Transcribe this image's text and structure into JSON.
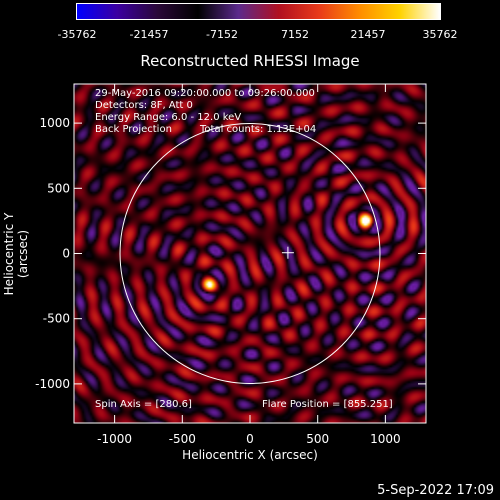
{
  "colorbar": {
    "ticks": [
      "-35762",
      "-21457",
      "-7152",
      "7152",
      "21457",
      "35762"
    ],
    "colors": [
      "#0000ff",
      "#3b00a0",
      "#2a0838",
      "#000000",
      "#5b2a8c",
      "#b01020",
      "#e83a1a",
      "#ff8c00",
      "#ffd200",
      "#ffffff"
    ]
  },
  "title": "Reconstructed RHESSI Image",
  "annotations": {
    "line1": "29-May-2016 09:20:00.000 to 09:26:00.000",
    "line2": "Detectors: 8F, Att 0",
    "line3": "Energy Range: 6.0 - 12.0 keV",
    "line4_left": "Back Projection",
    "line4_right": "Total counts: 1.13E+04",
    "spin_axis": "Spin Axis = [280.6]",
    "flare_position": "Flare Position = [855.251]"
  },
  "axes": {
    "xlabel": "Heliocentric X (arcsec)",
    "ylabel": "Heliocentric Y (arcsec)",
    "x_ticks": [
      "-1000",
      "-500",
      "0",
      "500",
      "1000"
    ],
    "y_ticks": [
      "1000",
      "500",
      "0",
      "-500",
      "-1000"
    ],
    "xlim": [
      -1300,
      1300
    ],
    "ylim": [
      -1300,
      1300
    ]
  },
  "image": {
    "sources": [
      {
        "x": 855,
        "y": 251,
        "strength": 1.0
      },
      {
        "x": -300,
        "y": -240,
        "strength": 0.75
      }
    ],
    "cross_marker": {
      "x": 280,
      "y": 6
    },
    "solar_disk_radius": 960
  },
  "footer": {
    "date": "5-Sep-2022 17:09"
  }
}
